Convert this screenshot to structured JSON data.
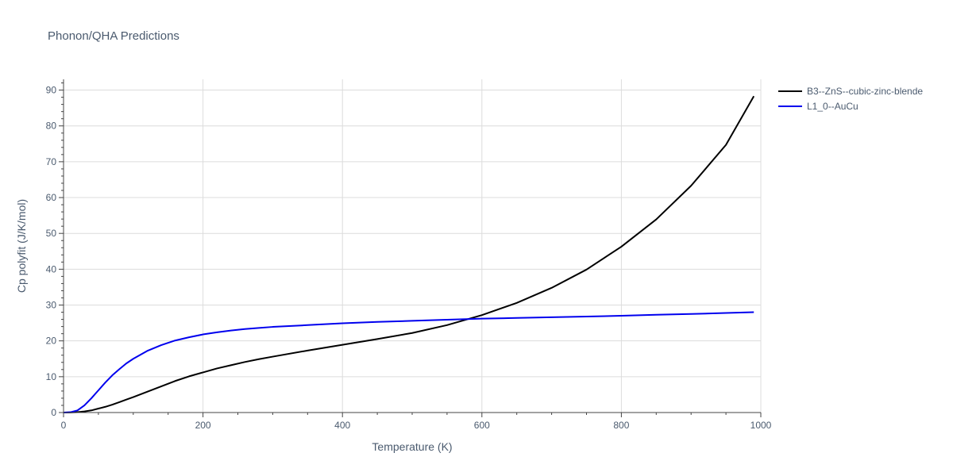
{
  "chart_data": {
    "type": "line",
    "title": "Phonon/QHA Predictions",
    "xlabel": "Temperature (K)",
    "ylabel": "Cp polyfit (J/K/mol)",
    "xlim": [
      0,
      1000
    ],
    "ylim": [
      0,
      93
    ],
    "xticks": [
      0,
      200,
      400,
      600,
      800,
      1000
    ],
    "yticks": [
      0,
      10,
      20,
      30,
      40,
      50,
      60,
      70,
      80,
      90
    ],
    "grid": true,
    "legend_position": "top-right",
    "series": [
      {
        "name": "B3--ZnS--cubic-zinc-blende",
        "color": "#000000",
        "x": [
          0,
          10,
          20,
          30,
          40,
          50,
          60,
          70,
          80,
          90,
          100,
          120,
          140,
          160,
          180,
          200,
          220,
          240,
          260,
          280,
          300,
          350,
          400,
          450,
          500,
          550,
          600,
          650,
          700,
          750,
          800,
          850,
          900,
          950,
          990
        ],
        "y": [
          0,
          0.03,
          0.1,
          0.3,
          0.6,
          1.1,
          1.6,
          2.2,
          2.9,
          3.6,
          4.3,
          5.8,
          7.3,
          8.8,
          10.1,
          11.2,
          12.3,
          13.2,
          14.1,
          14.9,
          15.6,
          17.3,
          18.9,
          20.5,
          22.2,
          24.4,
          27.2,
          30.6,
          34.8,
          39.9,
          46.3,
          53.9,
          63.3,
          74.7,
          88.3
        ]
      },
      {
        "name": "L1_0--AuCu",
        "color": "#0000ee",
        "x": [
          0,
          10,
          20,
          30,
          40,
          50,
          60,
          70,
          80,
          90,
          100,
          120,
          140,
          160,
          180,
          200,
          220,
          240,
          260,
          280,
          300,
          350,
          400,
          450,
          500,
          550,
          600,
          650,
          700,
          750,
          800,
          850,
          900,
          950,
          990
        ],
        "y": [
          0,
          0.1,
          0.6,
          2.0,
          4.0,
          6.2,
          8.4,
          10.4,
          12.1,
          13.7,
          15.0,
          17.2,
          18.8,
          20.1,
          21.0,
          21.8,
          22.4,
          22.9,
          23.3,
          23.6,
          23.9,
          24.4,
          24.9,
          25.3,
          25.6,
          25.9,
          26.2,
          26.4,
          26.6,
          26.8,
          27.0,
          27.3,
          27.5,
          27.8,
          28.0
        ]
      }
    ]
  }
}
